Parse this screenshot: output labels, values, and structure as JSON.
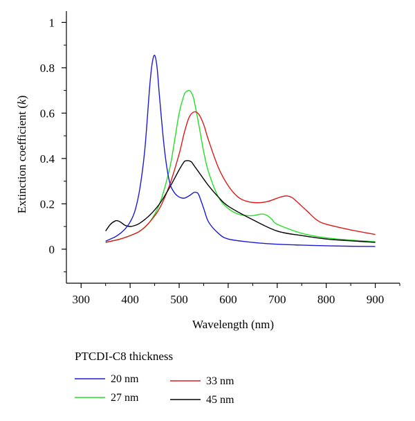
{
  "chart_data": {
    "type": "line",
    "title": "",
    "xlabel": "Wavelength (nm)",
    "ylabel_prefix": "Extinction coefficient (",
    "ylabel_var": "k",
    "ylabel_suffix": ")",
    "xlim": [
      270,
      950
    ],
    "ylim": [
      -0.15,
      1.05
    ],
    "x_ticks": [
      300,
      400,
      500,
      600,
      700,
      800,
      900
    ],
    "x_tick_labels": [
      "300",
      "400",
      "500",
      "600",
      "700",
      "800",
      "900"
    ],
    "y_ticks": [
      0,
      0.2,
      0.4,
      0.6,
      0.8,
      1.0
    ],
    "y_tick_labels": [
      "0",
      "0.2",
      "0.4",
      "0.6",
      "0.8",
      "1"
    ],
    "grid": false,
    "legend": {
      "title": "PTCDI-C8 thickness",
      "placement": "bottom-left"
    },
    "series": [
      {
        "name": "20 nm",
        "color": "#1a1ad2",
        "x": [
          350,
          360,
          370,
          380,
          390,
          400,
          410,
          420,
          430,
          440,
          445,
          450,
          455,
          460,
          470,
          480,
          490,
          500,
          510,
          520,
          530,
          535,
          540,
          550,
          560,
          580,
          600,
          650,
          700,
          750,
          800,
          850,
          900
        ],
        "y": [
          0.035,
          0.045,
          0.055,
          0.07,
          0.09,
          0.12,
          0.17,
          0.27,
          0.44,
          0.72,
          0.82,
          0.855,
          0.8,
          0.67,
          0.44,
          0.3,
          0.25,
          0.23,
          0.225,
          0.235,
          0.25,
          0.25,
          0.24,
          0.18,
          0.12,
          0.07,
          0.045,
          0.03,
          0.022,
          0.018,
          0.015,
          0.013,
          0.012
        ]
      },
      {
        "name": "27 nm",
        "color": "#22e022",
        "x": [
          350,
          380,
          400,
          420,
          440,
          460,
          480,
          490,
          500,
          510,
          515,
          520,
          525,
          530,
          540,
          550,
          560,
          580,
          600,
          620,
          640,
          650,
          660,
          670,
          680,
          690,
          700,
          750,
          800,
          850,
          900
        ],
        "y": [
          0.03,
          0.045,
          0.06,
          0.08,
          0.12,
          0.2,
          0.35,
          0.47,
          0.6,
          0.68,
          0.695,
          0.7,
          0.69,
          0.66,
          0.55,
          0.43,
          0.34,
          0.23,
          0.18,
          0.155,
          0.148,
          0.148,
          0.152,
          0.155,
          0.148,
          0.13,
          0.11,
          0.07,
          0.05,
          0.04,
          0.033
        ]
      },
      {
        "name": "33 nm",
        "color": "#dd1818",
        "x": [
          350,
          380,
          400,
          420,
          440,
          460,
          480,
          500,
          510,
          520,
          530,
          540,
          550,
          560,
          580,
          600,
          620,
          640,
          660,
          680,
          700,
          710,
          720,
          730,
          740,
          760,
          780,
          800,
          850,
          900
        ],
        "y": [
          0.03,
          0.045,
          0.06,
          0.08,
          0.12,
          0.18,
          0.28,
          0.42,
          0.51,
          0.58,
          0.605,
          0.595,
          0.55,
          0.48,
          0.36,
          0.28,
          0.23,
          0.21,
          0.205,
          0.21,
          0.225,
          0.232,
          0.235,
          0.228,
          0.21,
          0.17,
          0.13,
          0.11,
          0.085,
          0.065
        ]
      },
      {
        "name": "45 nm",
        "color": "#000000",
        "x": [
          350,
          360,
          370,
          375,
          380,
          390,
          400,
          410,
          420,
          440,
          460,
          480,
          500,
          510,
          515,
          520,
          525,
          530,
          540,
          560,
          580,
          600,
          650,
          700,
          750,
          800,
          850,
          900
        ],
        "y": [
          0.08,
          0.11,
          0.125,
          0.125,
          0.12,
          0.105,
          0.1,
          0.105,
          0.115,
          0.15,
          0.2,
          0.27,
          0.35,
          0.385,
          0.39,
          0.39,
          0.385,
          0.37,
          0.34,
          0.28,
          0.23,
          0.19,
          0.13,
          0.08,
          0.06,
          0.045,
          0.037,
          0.03
        ]
      }
    ]
  }
}
